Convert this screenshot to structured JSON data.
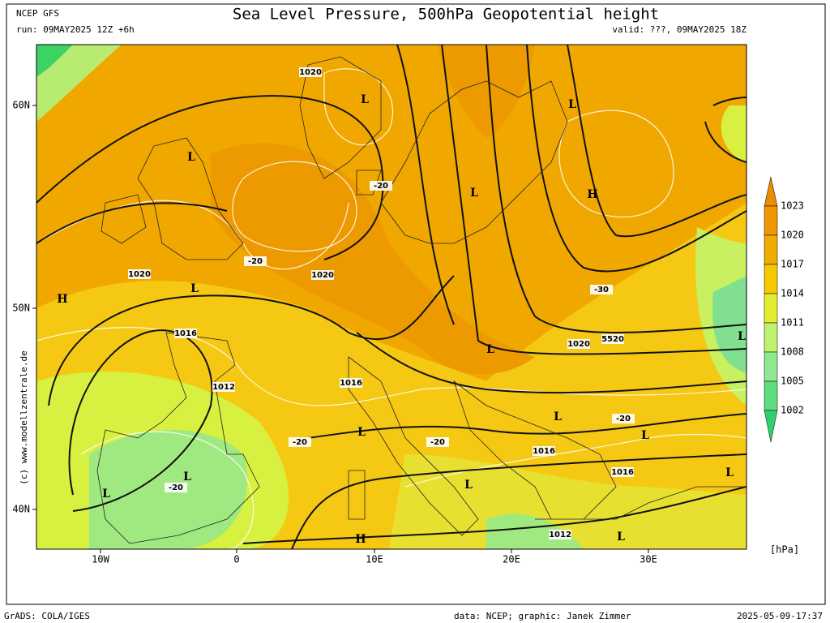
{
  "header": {
    "model": "NCEP GFS",
    "run": "run: 09MAY2025 12Z +6h",
    "title": "Sea Level Pressure, 500hPa Geopotential height",
    "valid": "valid: ???, 09MAY2025 18Z"
  },
  "axes": {
    "x_labels": [
      "10W",
      "0",
      "10E",
      "20E",
      "30E"
    ],
    "y_labels": [
      "60N",
      "50N",
      "40N"
    ]
  },
  "colorbar": {
    "labels": [
      "1023",
      "1020",
      "1017",
      "1014",
      "1011",
      "1008",
      "1005",
      "1002"
    ],
    "unit": "[hPa]"
  },
  "contour_labels": [
    "1020",
    "1020",
    "1020",
    "-20",
    "-20",
    "1016",
    "1012",
    "1016",
    "-20",
    "-20",
    "-20",
    "1016",
    "1016",
    "1012",
    "1020",
    "5520",
    "-30",
    "-20"
  ],
  "centers": [
    "H",
    "L",
    "L",
    "L",
    "L",
    "H",
    "L",
    "L",
    "L",
    "L",
    "L",
    "L",
    "L",
    "L",
    "L",
    "L",
    "H",
    "L"
  ],
  "watermark": "(c) www.modellzentrale.de",
  "footer": {
    "software": "GrADS: COLA/IGES",
    "credit": "data: NCEP; graphic: Janek Zimmer",
    "timestamp": "2025-05-09-17:37"
  }
}
